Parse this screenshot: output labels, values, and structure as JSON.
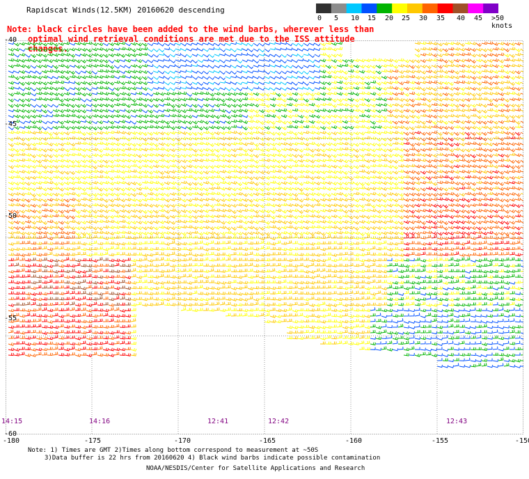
{
  "title": "Rapidscat Winds(12.5KM) 20160620 descending",
  "note": {
    "line1": "Note: black circles have been added to the wind barbs, wherever less than",
    "line2": "optimal wind retrieval conditions are met due to the ISS attitude changes."
  },
  "colorbar": {
    "labels": [
      "0",
      "5",
      "10",
      "15",
      "20",
      "25",
      "30",
      "35",
      "40",
      "45",
      ">50 knots"
    ],
    "colors": [
      "#303030",
      "#8c8c8c",
      "#00c8ff",
      "#0050ff",
      "#00b400",
      "#ffff00",
      "#ffc800",
      "#ff6400",
      "#ff0000",
      "#a05028",
      "#ff00ff",
      "#8000c8"
    ]
  },
  "axes": {
    "lat_labels": [
      "-40",
      "-45",
      "-50",
      "-55",
      "-60"
    ],
    "lon_labels": [
      "-180",
      "-175",
      "-170",
      "-165",
      "-160",
      "-155",
      "-150"
    ],
    "lat_range": [
      -60,
      -40
    ],
    "lon_range": [
      -180,
      -150
    ]
  },
  "times": [
    "14:15",
    "14:16",
    "12:41",
    "12:42",
    "12:43"
  ],
  "footer": {
    "line1": "Note: 1) Times are GMT 2)Times along bottom correspond to measurement at ~50S",
    "line2": "3)Data buffer is 22 hrs from 20160620 4) Black wind barbs indicate possible contamination",
    "line3": "NOAA/NESDIS/Center for Satellite Applications and Research"
  }
}
